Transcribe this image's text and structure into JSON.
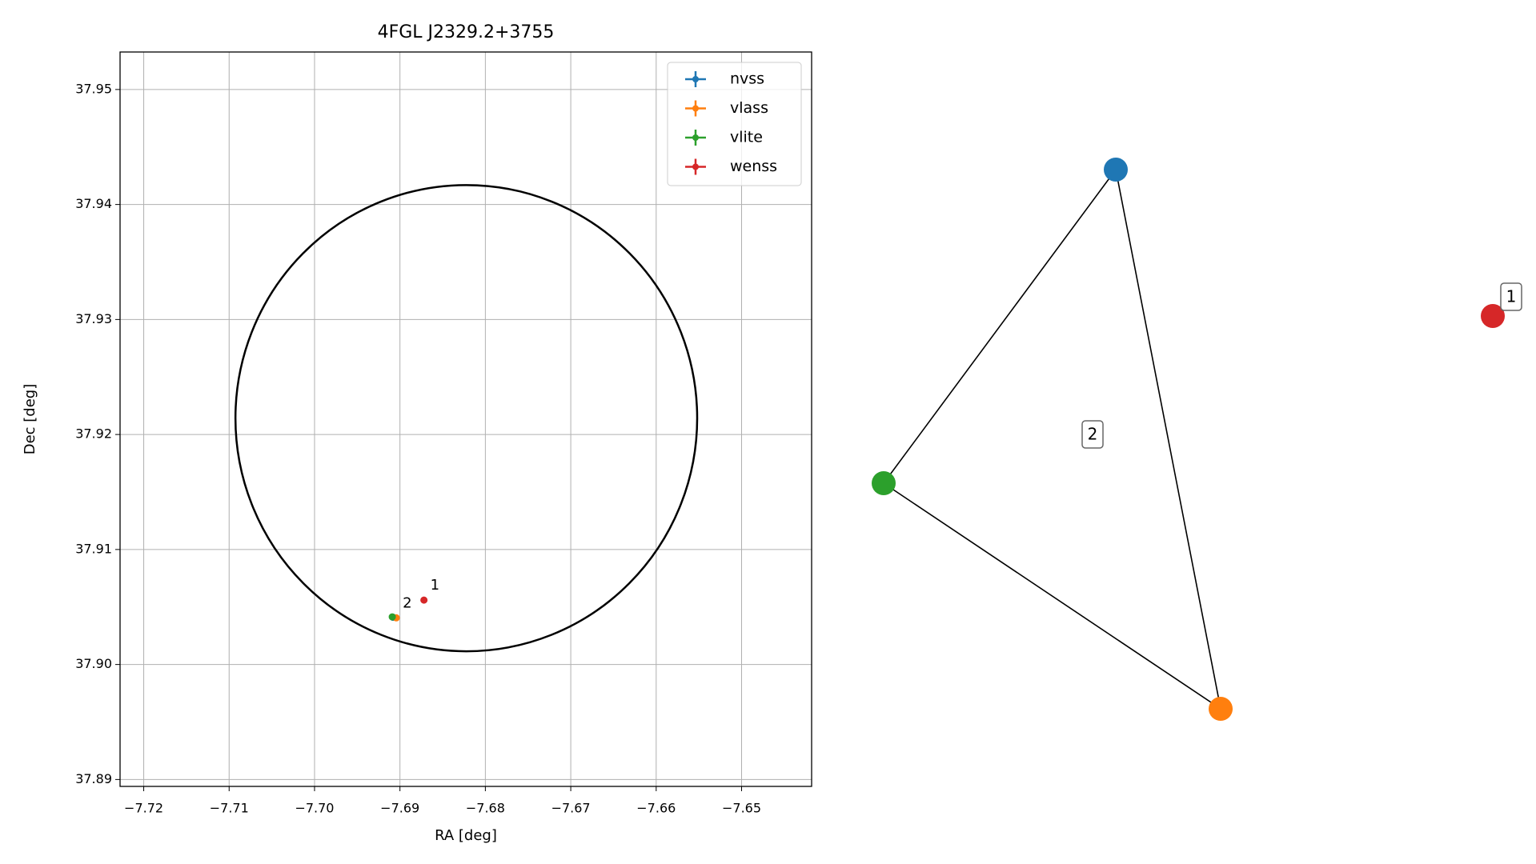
{
  "chart_data": [
    {
      "type": "scatter",
      "title": "4FGL J2329.2+3755",
      "x_label": "RA [deg]",
      "y_label": "Dec [deg]",
      "xlim": [
        -7.72277,
        -7.6418
      ],
      "ylim": [
        37.8894,
        37.95326
      ],
      "xticks": [
        {
          "value": -7.72,
          "label": "−7.72"
        },
        {
          "value": -7.71,
          "label": "−7.71"
        },
        {
          "value": -7.7,
          "label": "−7.70"
        },
        {
          "value": -7.69,
          "label": "−7.69"
        },
        {
          "value": -7.68,
          "label": "−7.68"
        },
        {
          "value": -7.67,
          "label": "−7.67"
        },
        {
          "value": -7.66,
          "label": "−7.66"
        },
        {
          "value": -7.65,
          "label": "−7.65"
        }
      ],
      "yticks": [
        37.89,
        {
          "value": 37.9,
          "label": "37.90"
        },
        37.91,
        37.92,
        37.93,
        37.94,
        37.95
      ],
      "grid": true,
      "legend": "upper right",
      "ellipse": {
        "x": -7.68223,
        "y": 37.92142,
        "rx": 0.02703,
        "ry": 0.02027,
        "color": "#000000"
      },
      "series": [
        {
          "name": "nvss",
          "color": "#1f77b4",
          "x": [
            -7.6908
          ],
          "values": [
            37.9041
          ]
        },
        {
          "name": "vlass",
          "color": "#ff7f0e",
          "x": [
            -7.69043
          ],
          "values": [
            37.90406
          ]
        },
        {
          "name": "vlite",
          "color": "#2ca02c",
          "x": [
            -7.6909
          ],
          "values": [
            37.90414
          ]
        },
        {
          "name": "wenss",
          "color": "#d62728",
          "x": [
            -7.68719
          ],
          "values": [
            37.9056
          ]
        }
      ],
      "annotations": [
        "1",
        "2"
      ]
    },
    {
      "type": "network",
      "nodes": [
        {
          "color": "#1f77b4"
        },
        {
          "color": "#ff7f0e"
        },
        {
          "color": "#2ca02c"
        },
        {
          "color": "#d62728"
        }
      ],
      "edges": [
        [
          0,
          1
        ],
        [
          1,
          2
        ],
        [
          2,
          0
        ]
      ],
      "groups": [
        "1",
        "2"
      ]
    }
  ]
}
